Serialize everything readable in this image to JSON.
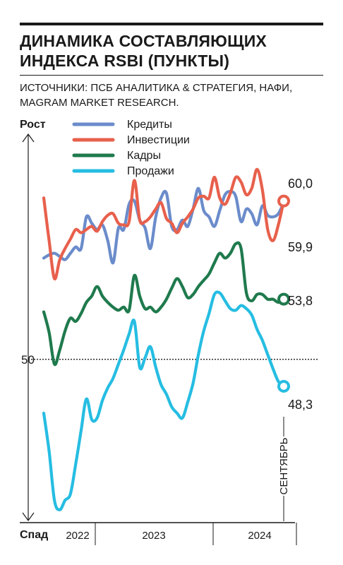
{
  "header": {
    "title_line1": "ДИНАМИКА СОСТАВЛЯЮЩИХ",
    "title_line2": "ИНДЕКСА RSBI (ПУНКТЫ)",
    "source_line1": "ИСТОЧНИКИ: ПСБ АНАЛИТИКА & СТРАТЕГИЯ, НАФИ,",
    "source_line2": "MAGRAM MARKET RESEARCH."
  },
  "chart_data": {
    "type": "line",
    "y_axis": {
      "top_label": "Рост",
      "bottom_label": "Спад",
      "reference_value": 50,
      "reference_label": "50",
      "ylim": [
        40,
        64
      ]
    },
    "x_axis": {
      "years": [
        "2022",
        "2023",
        "2024"
      ],
      "last_point_label": "СЕНТЯБРЬ"
    },
    "legend_position": "top",
    "series": [
      {
        "name": "Кредиты",
        "color": "#6b8ccb",
        "last_label": "59,9",
        "values": [
          56.4,
          56.6,
          56.7,
          56.5,
          56.3,
          56.7,
          57.1,
          57.0,
          59.0,
          58.6,
          58.2,
          58.5,
          57.5,
          56.1,
          58.3,
          58.2,
          59.8,
          60.0,
          58.8,
          58.3,
          57.0,
          59.0,
          60.2,
          60.5,
          58.4,
          58.2,
          58.8,
          58.4,
          59.5,
          60.8,
          59.4,
          59.0,
          58.4,
          59.4,
          60.4,
          60.6,
          60.3,
          58.7,
          59.5,
          59.2,
          58.5,
          59.7,
          59.1,
          59.0,
          59.2,
          59.9
        ]
      },
      {
        "name": "Инвестиции",
        "color": "#e8604c",
        "last_label": "60,0",
        "values": [
          60.2,
          57.5,
          55.1,
          56.3,
          57.0,
          57.6,
          58.2,
          58.0,
          58.2,
          58.4,
          58.1,
          58.7,
          59.1,
          59.2,
          58.6,
          58.5,
          58.7,
          61.3,
          58.8,
          58.7,
          59.0,
          59.5,
          59.9,
          58.9,
          58.6,
          58.0,
          58.6,
          59.0,
          59.5,
          60.2,
          60.3,
          60.2,
          61.5,
          60.2,
          59.8,
          60.5,
          61.5,
          61.2,
          60.4,
          60.8,
          62.0,
          60.7,
          58.2,
          57.5,
          58.5,
          60.0
        ]
      },
      {
        "name": "Кадры",
        "color": "#1f7a4d",
        "last_label": "53,8",
        "values": [
          53.0,
          51.7,
          49.7,
          50.6,
          51.8,
          52.6,
          52.4,
          52.9,
          53.6,
          54.0,
          54.6,
          54.0,
          53.6,
          53.3,
          53.1,
          53.3,
          53.1,
          55.3,
          54.0,
          53.2,
          53.3,
          53.0,
          53.3,
          53.8,
          54.5,
          55.1,
          54.6,
          53.9,
          54.1,
          54.6,
          55.0,
          55.4,
          56.1,
          56.7,
          56.4,
          56.7,
          57.3,
          57.0,
          54.2,
          53.7,
          54.1,
          54.1,
          53.8,
          53.8,
          53.6,
          53.8
        ]
      },
      {
        "name": "Продажи",
        "color": "#26bde2",
        "last_label": "48,3",
        "values": [
          46.6,
          44.2,
          41.1,
          40.5,
          41.1,
          41.5,
          43.4,
          45.5,
          47.5,
          46.2,
          46.3,
          47.4,
          48.2,
          48.8,
          49.7,
          50.6,
          51.6,
          52.4,
          49.5,
          50.1,
          50.8,
          49.5,
          48.4,
          47.8,
          47.0,
          46.6,
          46.3,
          47.3,
          48.5,
          50.3,
          51.8,
          52.9,
          54.1,
          54.2,
          53.7,
          53.2,
          53.1,
          53.4,
          53.2,
          52.8,
          51.9,
          51.2,
          50.3,
          49.4,
          48.6,
          48.3
        ]
      }
    ]
  }
}
